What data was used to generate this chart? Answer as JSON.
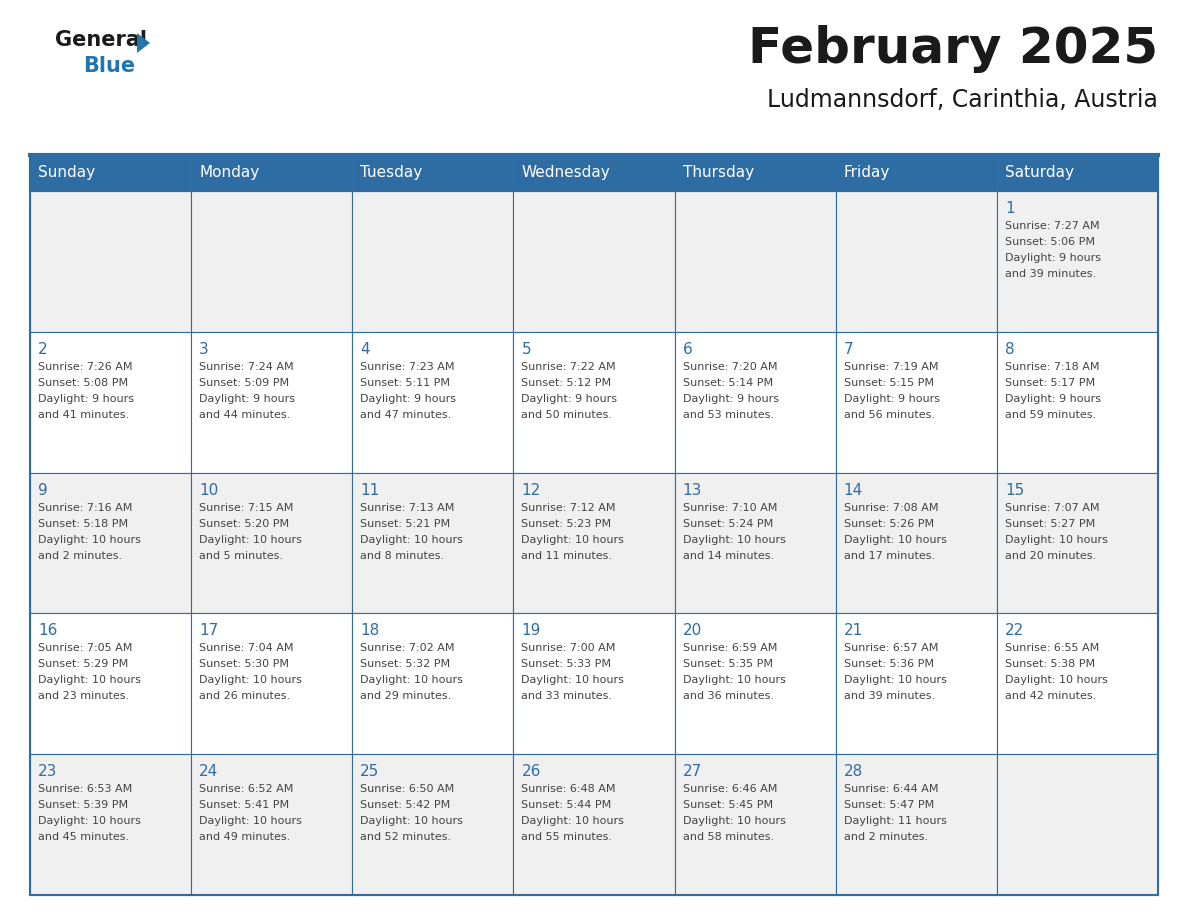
{
  "title": "February 2025",
  "subtitle": "Ludmannsdorf, Carinthia, Austria",
  "days_of_week": [
    "Sunday",
    "Monday",
    "Tuesday",
    "Wednesday",
    "Thursday",
    "Friday",
    "Saturday"
  ],
  "header_bg": "#2E6DA4",
  "header_text": "#FFFFFF",
  "cell_bg_odd": "#F0F0F0",
  "cell_bg_even": "#FFFFFF",
  "border_color": "#2E6DA4",
  "day_num_color": "#2E6DA4",
  "text_color": "#444444",
  "title_color": "#1a1a1a",
  "logo_general_color": "#1a1a1a",
  "logo_blue_color": "#2176AE",
  "calendar_data": [
    [
      null,
      null,
      null,
      null,
      null,
      null,
      {
        "day": 1,
        "sunrise": "7:27 AM",
        "sunset": "5:06 PM",
        "daylight": "9 hours and 39 minutes."
      }
    ],
    [
      {
        "day": 2,
        "sunrise": "7:26 AM",
        "sunset": "5:08 PM",
        "daylight": "9 hours and 41 minutes."
      },
      {
        "day": 3,
        "sunrise": "7:24 AM",
        "sunset": "5:09 PM",
        "daylight": "9 hours and 44 minutes."
      },
      {
        "day": 4,
        "sunrise": "7:23 AM",
        "sunset": "5:11 PM",
        "daylight": "9 hours and 47 minutes."
      },
      {
        "day": 5,
        "sunrise": "7:22 AM",
        "sunset": "5:12 PM",
        "daylight": "9 hours and 50 minutes."
      },
      {
        "day": 6,
        "sunrise": "7:20 AM",
        "sunset": "5:14 PM",
        "daylight": "9 hours and 53 minutes."
      },
      {
        "day": 7,
        "sunrise": "7:19 AM",
        "sunset": "5:15 PM",
        "daylight": "9 hours and 56 minutes."
      },
      {
        "day": 8,
        "sunrise": "7:18 AM",
        "sunset": "5:17 PM",
        "daylight": "9 hours and 59 minutes."
      }
    ],
    [
      {
        "day": 9,
        "sunrise": "7:16 AM",
        "sunset": "5:18 PM",
        "daylight": "10 hours and 2 minutes."
      },
      {
        "day": 10,
        "sunrise": "7:15 AM",
        "sunset": "5:20 PM",
        "daylight": "10 hours and 5 minutes."
      },
      {
        "day": 11,
        "sunrise": "7:13 AM",
        "sunset": "5:21 PM",
        "daylight": "10 hours and 8 minutes."
      },
      {
        "day": 12,
        "sunrise": "7:12 AM",
        "sunset": "5:23 PM",
        "daylight": "10 hours and 11 minutes."
      },
      {
        "day": 13,
        "sunrise": "7:10 AM",
        "sunset": "5:24 PM",
        "daylight": "10 hours and 14 minutes."
      },
      {
        "day": 14,
        "sunrise": "7:08 AM",
        "sunset": "5:26 PM",
        "daylight": "10 hours and 17 minutes."
      },
      {
        "day": 15,
        "sunrise": "7:07 AM",
        "sunset": "5:27 PM",
        "daylight": "10 hours and 20 minutes."
      }
    ],
    [
      {
        "day": 16,
        "sunrise": "7:05 AM",
        "sunset": "5:29 PM",
        "daylight": "10 hours and 23 minutes."
      },
      {
        "day": 17,
        "sunrise": "7:04 AM",
        "sunset": "5:30 PM",
        "daylight": "10 hours and 26 minutes."
      },
      {
        "day": 18,
        "sunrise": "7:02 AM",
        "sunset": "5:32 PM",
        "daylight": "10 hours and 29 minutes."
      },
      {
        "day": 19,
        "sunrise": "7:00 AM",
        "sunset": "5:33 PM",
        "daylight": "10 hours and 33 minutes."
      },
      {
        "day": 20,
        "sunrise": "6:59 AM",
        "sunset": "5:35 PM",
        "daylight": "10 hours and 36 minutes."
      },
      {
        "day": 21,
        "sunrise": "6:57 AM",
        "sunset": "5:36 PM",
        "daylight": "10 hours and 39 minutes."
      },
      {
        "day": 22,
        "sunrise": "6:55 AM",
        "sunset": "5:38 PM",
        "daylight": "10 hours and 42 minutes."
      }
    ],
    [
      {
        "day": 23,
        "sunrise": "6:53 AM",
        "sunset": "5:39 PM",
        "daylight": "10 hours and 45 minutes."
      },
      {
        "day": 24,
        "sunrise": "6:52 AM",
        "sunset": "5:41 PM",
        "daylight": "10 hours and 49 minutes."
      },
      {
        "day": 25,
        "sunrise": "6:50 AM",
        "sunset": "5:42 PM",
        "daylight": "10 hours and 52 minutes."
      },
      {
        "day": 26,
        "sunrise": "6:48 AM",
        "sunset": "5:44 PM",
        "daylight": "10 hours and 55 minutes."
      },
      {
        "day": 27,
        "sunrise": "6:46 AM",
        "sunset": "5:45 PM",
        "daylight": "10 hours and 58 minutes."
      },
      {
        "day": 28,
        "sunrise": "6:44 AM",
        "sunset": "5:47 PM",
        "daylight": "11 hours and 2 minutes."
      },
      null
    ]
  ]
}
